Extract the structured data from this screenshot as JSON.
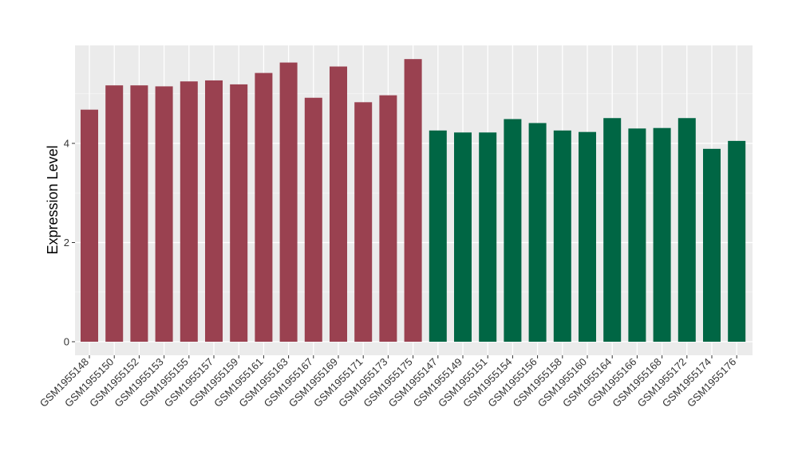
{
  "chart_data": {
    "type": "bar",
    "title": "",
    "xlabel": "",
    "ylabel": "Expression Level",
    "ylim": [
      0,
      6
    ],
    "yticks": [
      0,
      2,
      4
    ],
    "grid": true,
    "background": "#ebebeb",
    "categories": [
      "GSM1955148",
      "GSM1955150",
      "GSM1955152",
      "GSM1955153",
      "GSM1955155",
      "GSM1955157",
      "GSM1955159",
      "GSM1955161",
      "GSM1955163",
      "GSM1955167",
      "GSM1955169",
      "GSM1955171",
      "GSM1955173",
      "GSM1955175",
      "GSM1955147",
      "GSM1955149",
      "GSM1955151",
      "GSM1955154",
      "GSM1955156",
      "GSM1955158",
      "GSM1955160",
      "GSM1955164",
      "GSM1955166",
      "GSM1955168",
      "GSM1955172",
      "GSM1955174",
      "GSM1955176"
    ],
    "values": [
      4.68,
      5.17,
      5.17,
      5.15,
      5.25,
      5.27,
      5.19,
      5.42,
      5.63,
      4.92,
      5.55,
      4.83,
      4.97,
      5.7,
      4.26,
      4.22,
      4.22,
      4.49,
      4.41,
      4.26,
      4.23,
      4.51,
      4.3,
      4.31,
      4.51,
      3.89,
      4.05
    ],
    "bar_colors": [
      "#9a4150",
      "#9a4150",
      "#9a4150",
      "#9a4150",
      "#9a4150",
      "#9a4150",
      "#9a4150",
      "#9a4150",
      "#9a4150",
      "#9a4150",
      "#9a4150",
      "#9a4150",
      "#9a4150",
      "#9a4150",
      "#006644",
      "#006644",
      "#006644",
      "#006644",
      "#006644",
      "#006644",
      "#006644",
      "#006644",
      "#006644",
      "#006644",
      "#006644",
      "#006644",
      "#006644"
    ]
  }
}
